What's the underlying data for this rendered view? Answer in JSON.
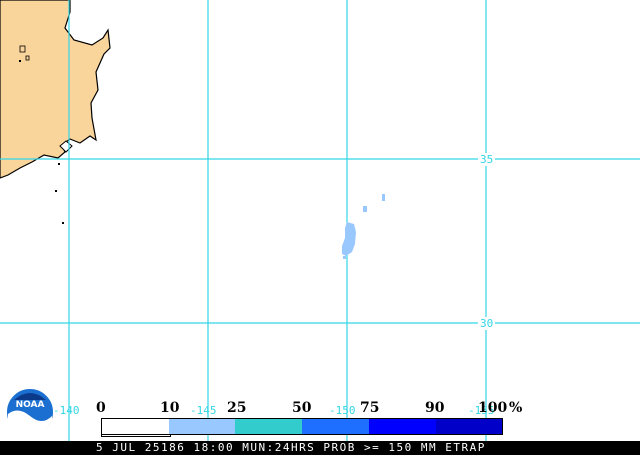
{
  "map": {
    "colors": {
      "land": "#f9d49b",
      "water": "#ffffff",
      "grid": "#33d6e6",
      "precip": "#99c8ff",
      "coast": "#000000"
    },
    "grid_labels": {
      "lat_35": "35",
      "lat_30": "30",
      "lon_145": "-145",
      "lon_150": "-150",
      "lon_155": "-155",
      "lon_140": "-140"
    }
  },
  "legend": {
    "labels": [
      "0",
      "10",
      "25",
      "50",
      "75",
      "90",
      "100"
    ],
    "unit": "%",
    "colors": [
      "#ffffff",
      "#99c8ff",
      "#33cccc",
      "#1e6eff",
      "#0000ff",
      "#0000c8",
      "#00008c"
    ],
    "logo_text": "NOAA"
  },
  "status": {
    "text": "5 JUL 25186 18:00 MUN:24HRS PROB >= 150 MM ETRAP"
  }
}
